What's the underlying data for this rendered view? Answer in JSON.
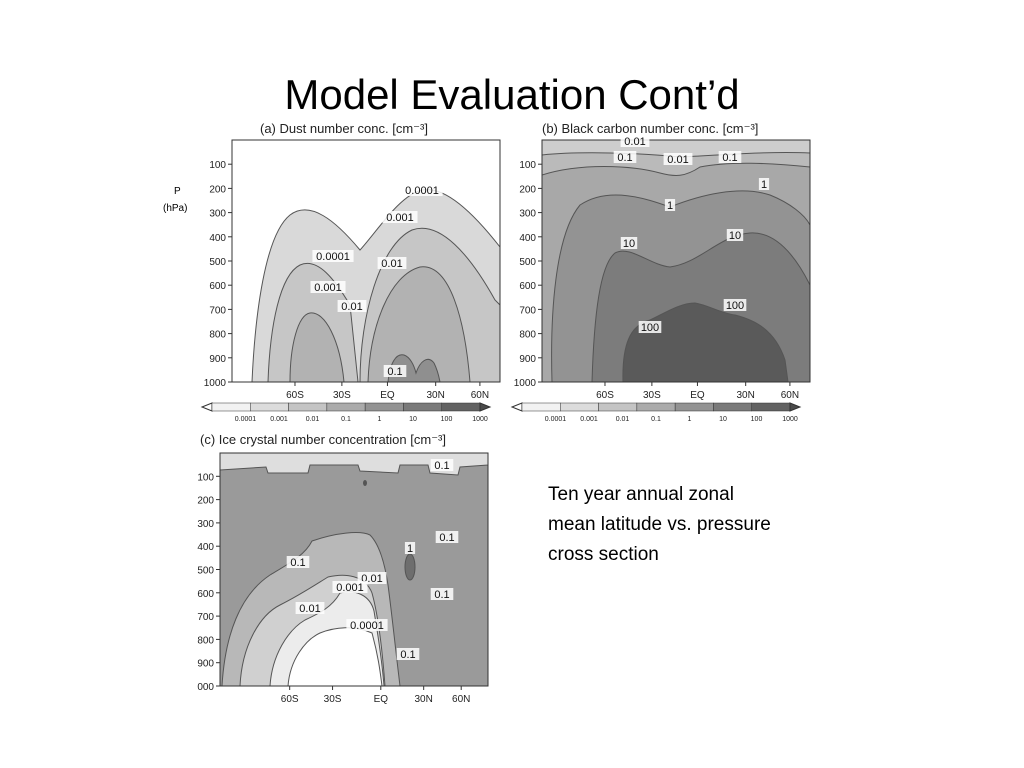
{
  "slide": {
    "title": "Model Evaluation Cont’d",
    "caption_lines": [
      "Ten year annual zonal",
      "mean latitude vs. pressure",
      "cross section"
    ]
  },
  "colors": {
    "c1": "#f2f2f2",
    "c2": "#dcdcdc",
    "c3": "#c4c4c4",
    "c4": "#ababab",
    "c5": "#939393",
    "c6": "#7a7a7a",
    "c7": "#626262",
    "c8": "#4a4a4a"
  },
  "chart_data": [
    {
      "type": "contour",
      "panel": "a",
      "title": "(a) Dust number conc. [cm⁻³]",
      "ylabel": "P (hPa)",
      "xticks": [
        "60S",
        "30S",
        "EQ",
        "30N",
        "60N"
      ],
      "yticks": [
        "100",
        "200",
        "300",
        "400",
        "500",
        "600",
        "700",
        "800",
        "900",
        "1000"
      ],
      "ylim": [
        1000,
        0
      ],
      "contour_labels": [
        "0.0001",
        "0.001",
        "0.01",
        "0.0001",
        "0.001",
        "0.01",
        "0.1"
      ],
      "colorbar": [
        "0.0001",
        "0.001",
        "0.01",
        "0.1",
        "1",
        "10",
        "100",
        "1000"
      ]
    },
    {
      "type": "contour",
      "panel": "b",
      "title": "(b) Black carbon number conc. [cm⁻³]",
      "xticks": [
        "60S",
        "30S",
        "EQ",
        "30N",
        "60N"
      ],
      "yticks": [
        "100",
        "200",
        "300",
        "400",
        "500",
        "600",
        "700",
        "800",
        "900",
        "1000"
      ],
      "ylim": [
        1000,
        0
      ],
      "contour_labels": [
        "0.01",
        "0.1",
        "0.01",
        "0.1",
        "1",
        "1",
        "10",
        "10",
        "100",
        "100"
      ],
      "colorbar": [
        "0.0001",
        "0.001",
        "0.01",
        "0.1",
        "1",
        "10",
        "100",
        "1000"
      ]
    },
    {
      "type": "contour",
      "panel": "c",
      "title": "(c) Ice crystal number concentration [cm⁻³]",
      "xticks": [
        "60S",
        "30S",
        "EQ",
        "30N",
        "60N"
      ],
      "yticks": [
        "100",
        "200",
        "300",
        "400",
        "500",
        "600",
        "700",
        "800",
        "900",
        "000"
      ],
      "ylim": [
        1000,
        0
      ],
      "contour_labels": [
        "0.1",
        "0.1",
        "1",
        "0.1",
        "0.01",
        "0.001",
        "0.1",
        "0.01",
        "0.0001",
        "0.1"
      ]
    }
  ]
}
